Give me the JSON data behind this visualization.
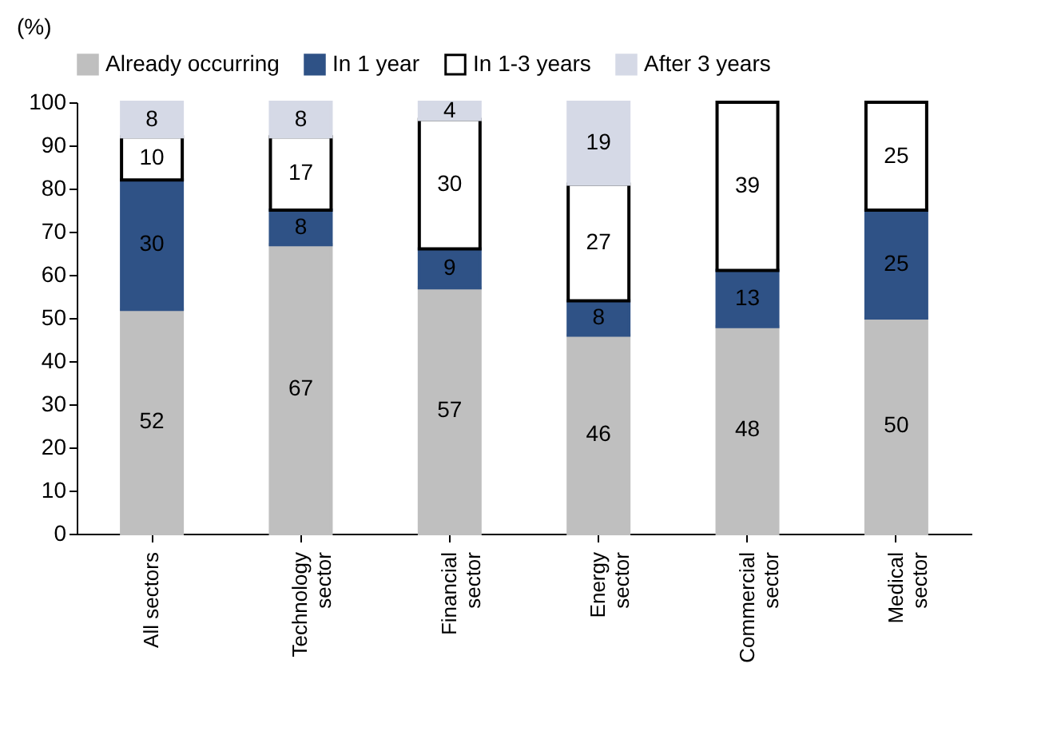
{
  "chart_data": {
    "type": "bar",
    "stacked": true,
    "ylabel": "(%)",
    "categories": [
      "All sectors",
      "Technology sector",
      "Financial sector",
      "Energy sector",
      "Commercial sector",
      "Medical sector"
    ],
    "series": [
      {
        "name": "Already occurring",
        "color": "#bfbfbf",
        "values": [
          52,
          67,
          57,
          46,
          48,
          50
        ]
      },
      {
        "name": "In 1 year",
        "color": "#2f5286",
        "values": [
          30,
          8,
          9,
          8,
          13,
          25
        ]
      },
      {
        "name": "In 1-3 years",
        "color": "#ffffff",
        "values": [
          10,
          17,
          30,
          27,
          39,
          25
        ]
      },
      {
        "name": "After 3 years",
        "color": "#d5d9e6",
        "values": [
          8,
          8,
          4,
          19,
          null,
          null
        ]
      }
    ],
    "ylim": [
      0,
      100
    ],
    "yticks": [
      0,
      10,
      20,
      30,
      40,
      50,
      60,
      70,
      80,
      90,
      100
    ],
    "data_labels": true,
    "legend": "top",
    "grid": false
  }
}
